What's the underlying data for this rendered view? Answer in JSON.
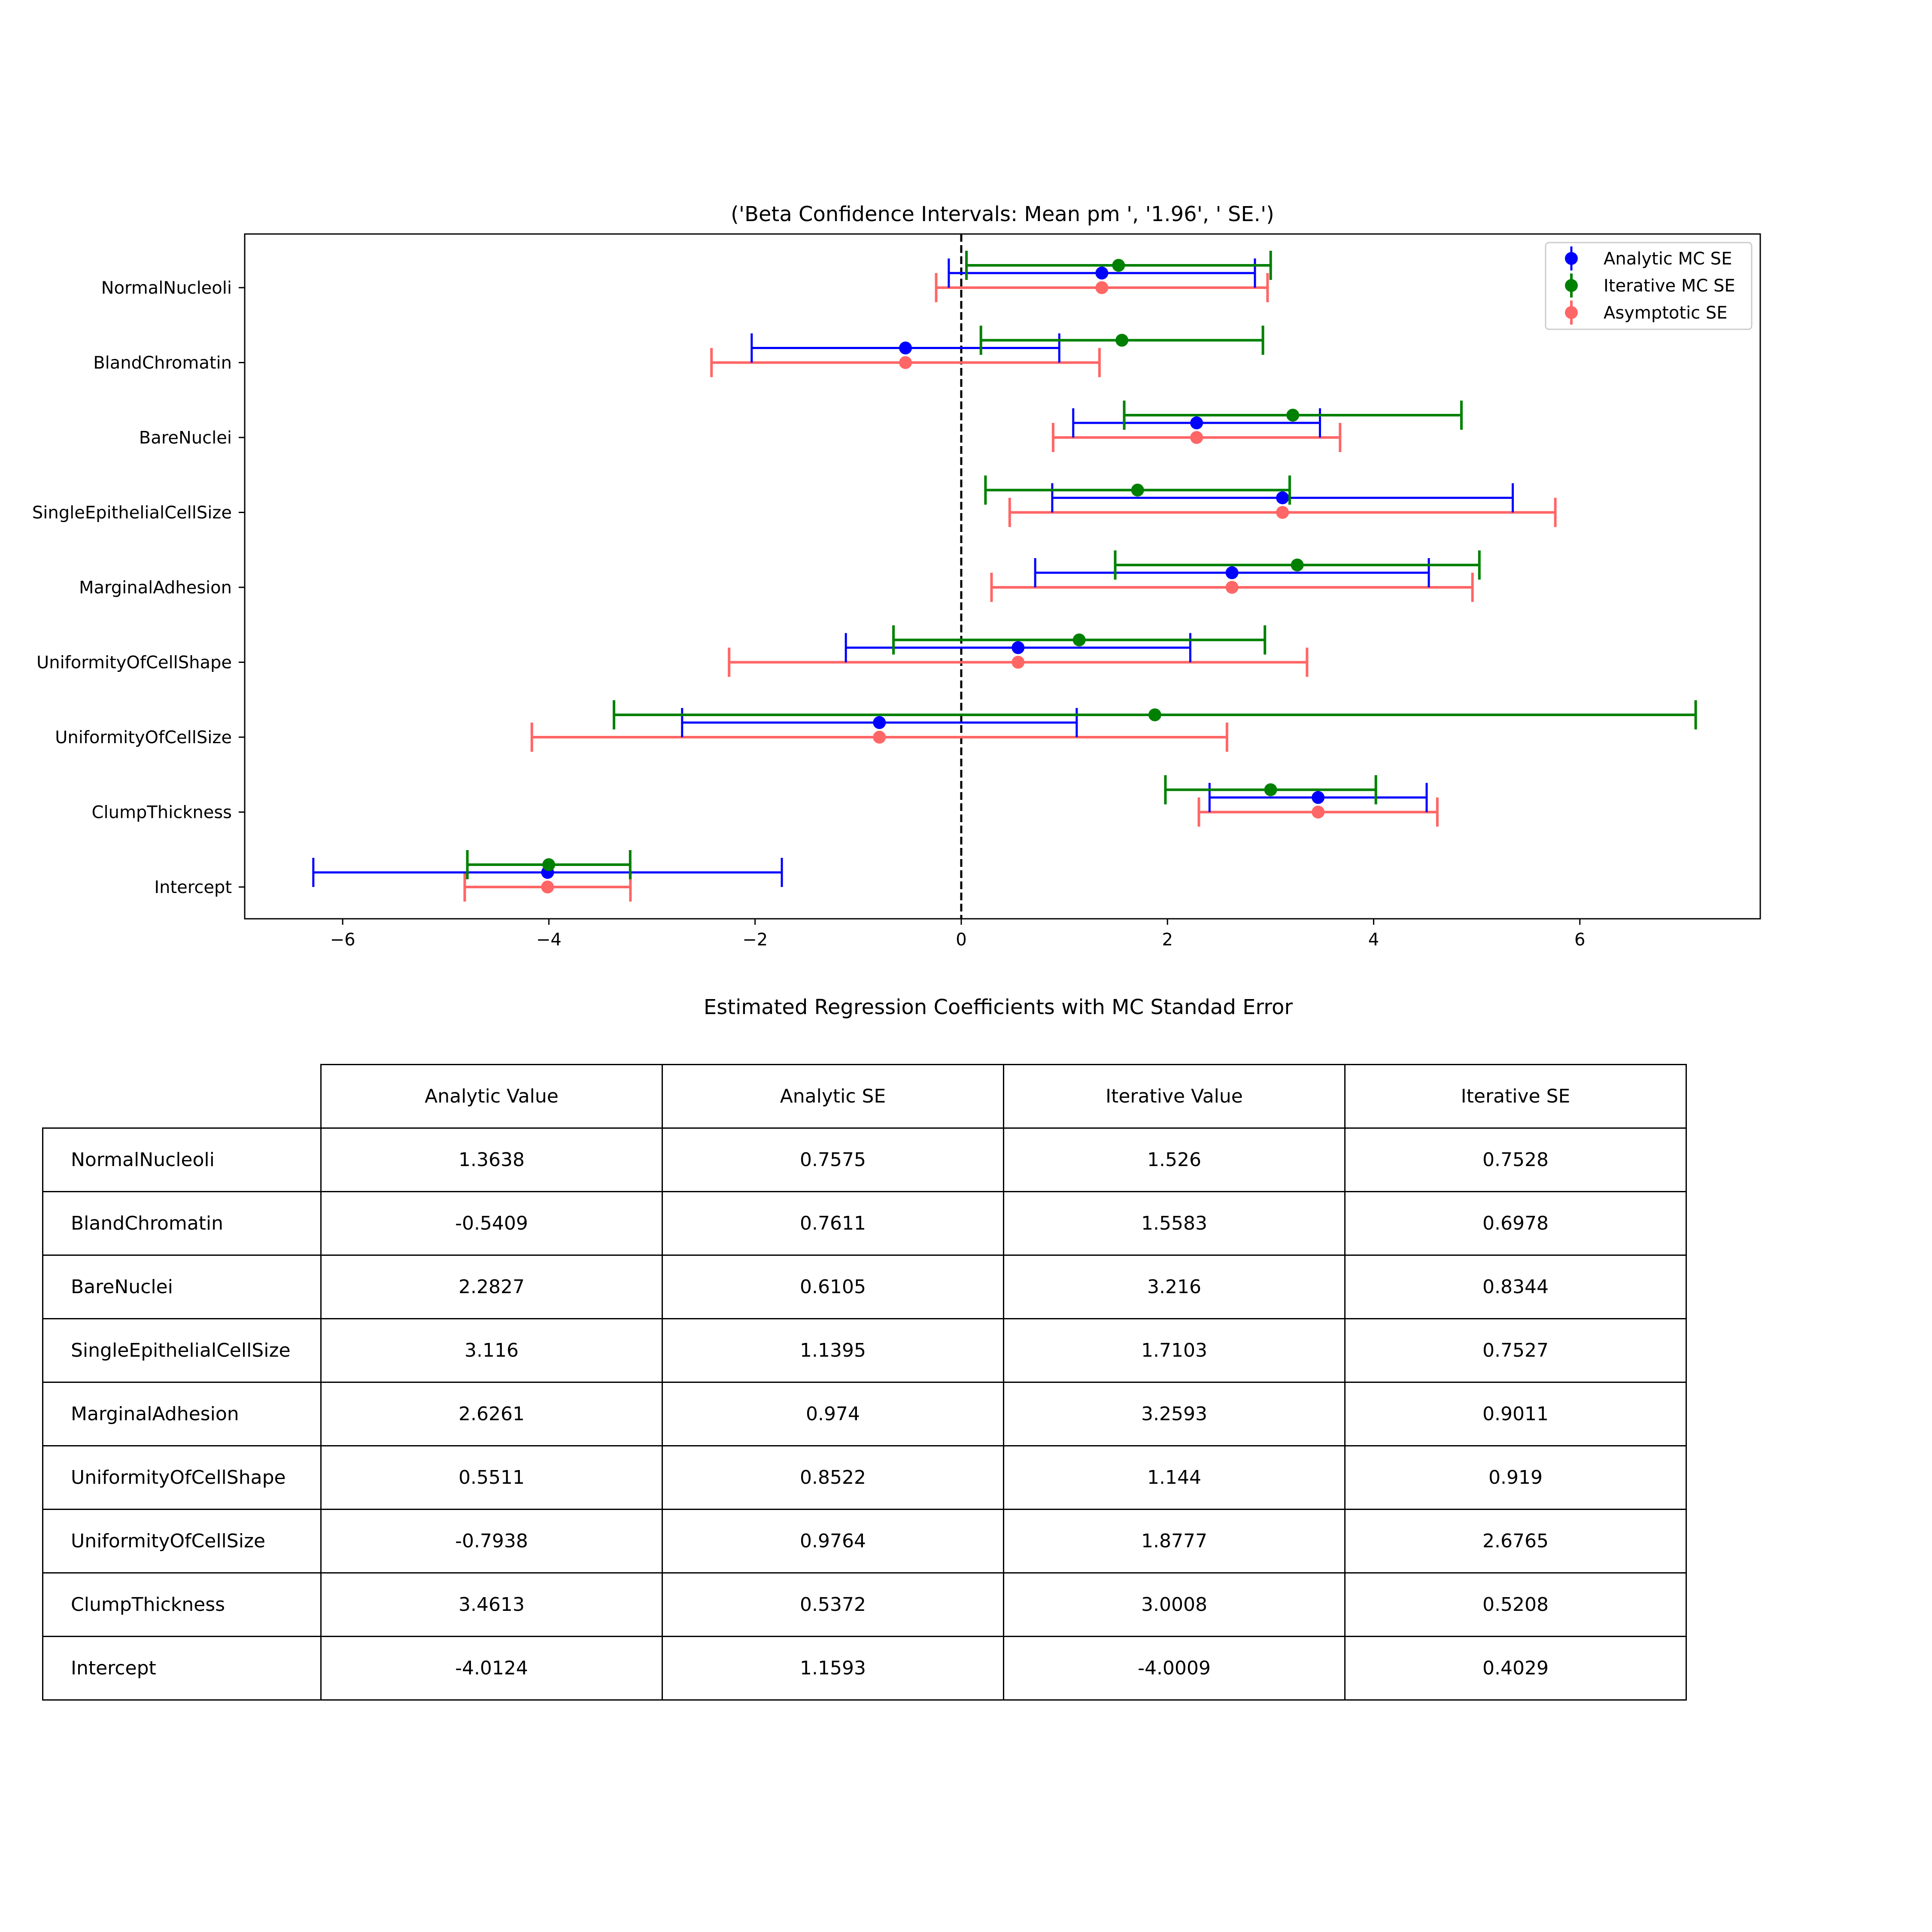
{
  "chart_data": [
    {
      "type": "errorbar",
      "orientation": "horizontal",
      "title": "('Beta Confidence Intervals: Mean pm ', '1.96', ' SE.')",
      "xlabel": "",
      "ylabel": "",
      "xlim": [
        -6.95,
        7.75
      ],
      "xticks": [
        -6,
        -4,
        -2,
        0,
        2,
        4,
        6
      ],
      "xtick_labels": [
        "−6",
        "−4",
        "−2",
        "0",
        "2",
        "4",
        "6"
      ],
      "reference_line_x": 0,
      "legend_position": "top-right",
      "categories": [
        "NormalNucleoli",
        "BlandChromatin",
        "BareNuclei",
        "SingleEpithelialCellSize",
        "MarginalAdhesion",
        "UniformityOfCellShape",
        "UniformityOfCellSize",
        "ClumpThickness",
        "Intercept"
      ],
      "series": [
        {
          "name": "Analytic MC SE",
          "color": "#0000ff",
          "values": [
            1.3638,
            -0.5409,
            2.2827,
            3.116,
            2.6261,
            0.5511,
            -0.7938,
            3.4613,
            -4.0124
          ],
          "se": [
            0.7575,
            0.7611,
            0.6105,
            1.1395,
            0.974,
            0.8522,
            0.9764,
            0.5372,
            1.1593
          ]
        },
        {
          "name": "Iterative MC SE",
          "color": "#008000",
          "values": [
            1.526,
            1.5583,
            3.216,
            1.7103,
            3.2593,
            1.144,
            1.8777,
            3.0008,
            -4.0009
          ],
          "se": [
            0.7528,
            0.6978,
            0.8344,
            0.7527,
            0.9011,
            0.919,
            2.6765,
            0.5208,
            0.4029
          ]
        },
        {
          "name": "Asymptotic SE",
          "color": "#ff6666",
          "values": [
            1.3638,
            -0.5409,
            2.2827,
            3.116,
            2.6261,
            0.5511,
            -0.7938,
            3.4613,
            -4.0124
          ],
          "se": [
            0.82,
            0.96,
            0.71,
            1.35,
            1.19,
            1.43,
            1.72,
            0.59,
            0.41
          ]
        }
      ]
    },
    {
      "type": "table",
      "title": "Estimated Regression Coefficients with MC Standad Error",
      "columns": [
        "Analytic Value",
        "Analytic SE",
        "Iterative Value",
        "Iterative SE"
      ],
      "rows": [
        {
          "label": "NormalNucleoli",
          "values": [
            "1.3638",
            "0.7575",
            "1.526",
            "0.7528"
          ]
        },
        {
          "label": "BlandChromatin",
          "values": [
            "-0.5409",
            "0.7611",
            "1.5583",
            "0.6978"
          ]
        },
        {
          "label": "BareNuclei",
          "values": [
            "2.2827",
            "0.6105",
            "3.216",
            "0.8344"
          ]
        },
        {
          "label": "SingleEpithelialCellSize",
          "values": [
            "3.116",
            "1.1395",
            "1.7103",
            "0.7527"
          ]
        },
        {
          "label": "MarginalAdhesion",
          "values": [
            "2.6261",
            "0.974",
            "3.2593",
            "0.9011"
          ]
        },
        {
          "label": "UniformityOfCellShape",
          "values": [
            "0.5511",
            "0.8522",
            "1.144",
            "0.919"
          ]
        },
        {
          "label": "UniformityOfCellSize",
          "values": [
            "-0.7938",
            "0.9764",
            "1.8777",
            "2.6765"
          ]
        },
        {
          "label": "ClumpThickness",
          "values": [
            "3.4613",
            "0.5372",
            "3.0008",
            "0.5208"
          ]
        },
        {
          "label": "Intercept",
          "values": [
            "-4.0124",
            "1.1593",
            "-4.0009",
            "0.4029"
          ]
        }
      ]
    }
  ]
}
